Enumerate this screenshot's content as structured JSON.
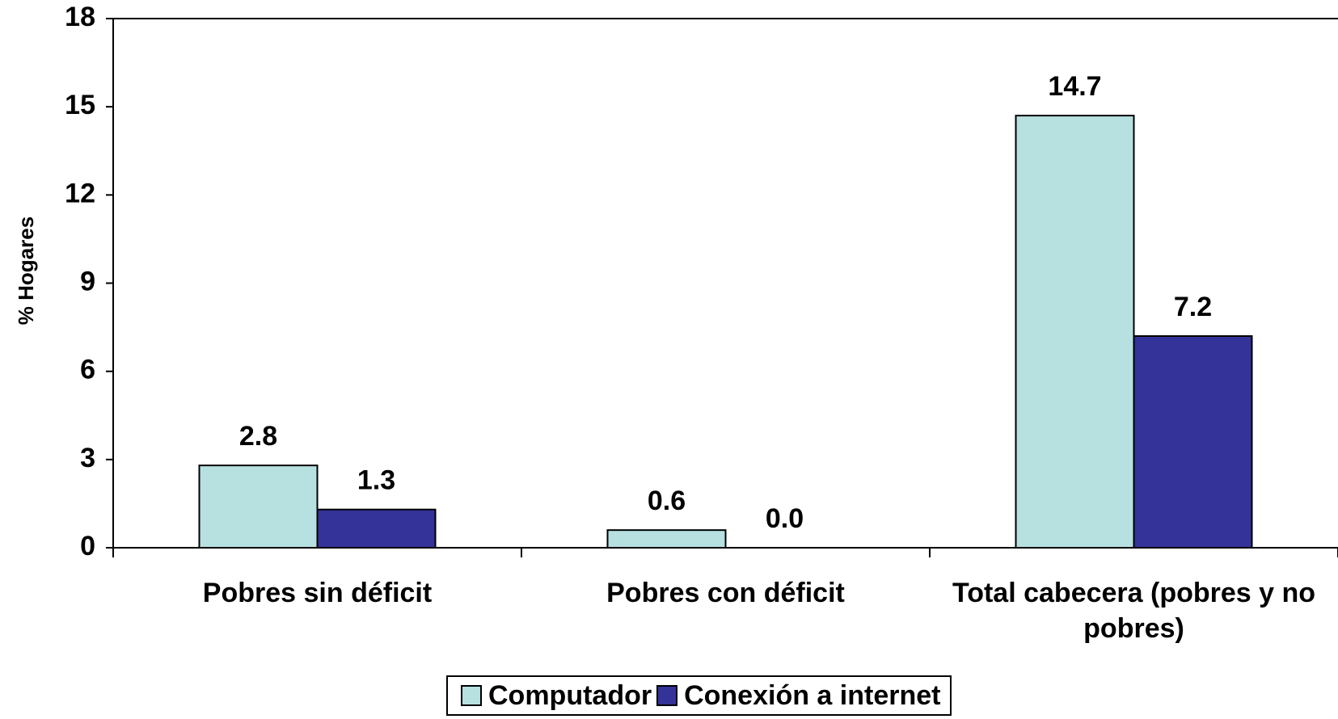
{
  "chart_data": {
    "type": "bar",
    "y_label": "% Hogares",
    "categories": [
      "Pobres sin déficit",
      "Pobres con déficit",
      "Total cabecera (pobres y no pobres)"
    ],
    "series": [
      {
        "name": "Computador",
        "color": "#b7e0e1",
        "values": [
          2.8,
          0.6,
          14.7
        ],
        "value_labels": [
          "2.8",
          "0.6",
          "14.7"
        ]
      },
      {
        "name": "Conexión a internet",
        "color": "#333399",
        "values": [
          1.3,
          0,
          7.2
        ],
        "value_labels": [
          "1.3",
          "0.0",
          "7.2"
        ]
      }
    ],
    "ylim": [
      0,
      18
    ],
    "yticks": [
      0,
      3,
      6,
      9,
      12,
      15,
      18
    ],
    "grid": false
  }
}
